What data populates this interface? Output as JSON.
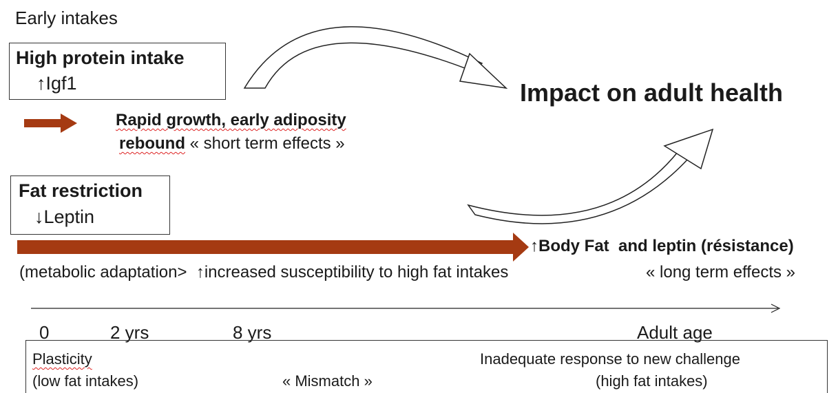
{
  "header": {
    "title": "Early intakes"
  },
  "protein_box": {
    "title": "High protein intake",
    "effect": "↑Igf1"
  },
  "short_term": {
    "line1": "Rapid growth, early adiposity",
    "line2_bold": "rebound",
    "line2_rest": " « short term effects »"
  },
  "outcome": "Impact on adult health",
  "fat_box": {
    "title": "Fat restriction",
    "effect": "↓Leptin"
  },
  "long_term": {
    "result": "↑Body Fat  and leptin (résistance)",
    "adaptation": "(metabolic adaptation>  ↑increased susceptibility to high fat intakes",
    "label": "« long term effects »"
  },
  "timeline": {
    "ticks": [
      "0",
      "2 yrs",
      "8 yrs",
      "Adult age"
    ]
  },
  "bottom_box": {
    "left_1": "Plasticity",
    "left_2": "(low fat intakes)",
    "middle": "« Mismatch »",
    "right_1": "Inadequate response to new challenge",
    "right_2": "(high fat intakes)"
  }
}
